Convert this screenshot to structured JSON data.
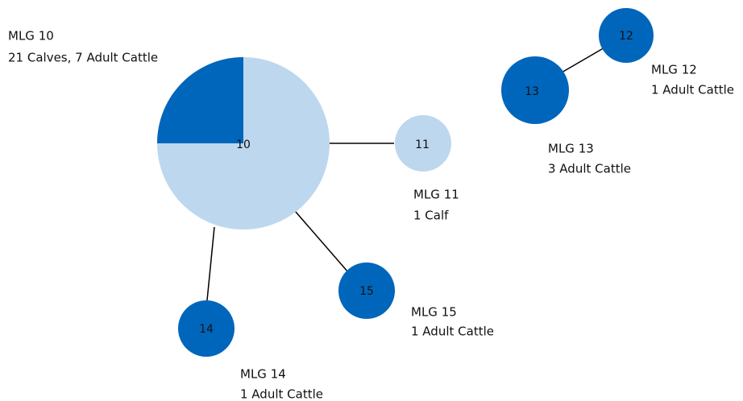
{
  "nodes": [
    {
      "id": 10,
      "title": "MLG 10",
      "description": "21 Calves, 7 Adult Cattle"
    },
    {
      "id": 11,
      "title": "MLG 11",
      "description": "1 Calf"
    },
    {
      "id": 12,
      "title": "MLG 12",
      "description": "1 Adult Cattle"
    },
    {
      "id": 13,
      "title": "MLG 13",
      "description": "3 Adult Cattle"
    },
    {
      "id": 14,
      "title": "MLG 14",
      "description": "1 Adult Cattle"
    },
    {
      "id": 15,
      "title": "MLG 15",
      "description": "1 Adult Cattle"
    }
  ]
}
